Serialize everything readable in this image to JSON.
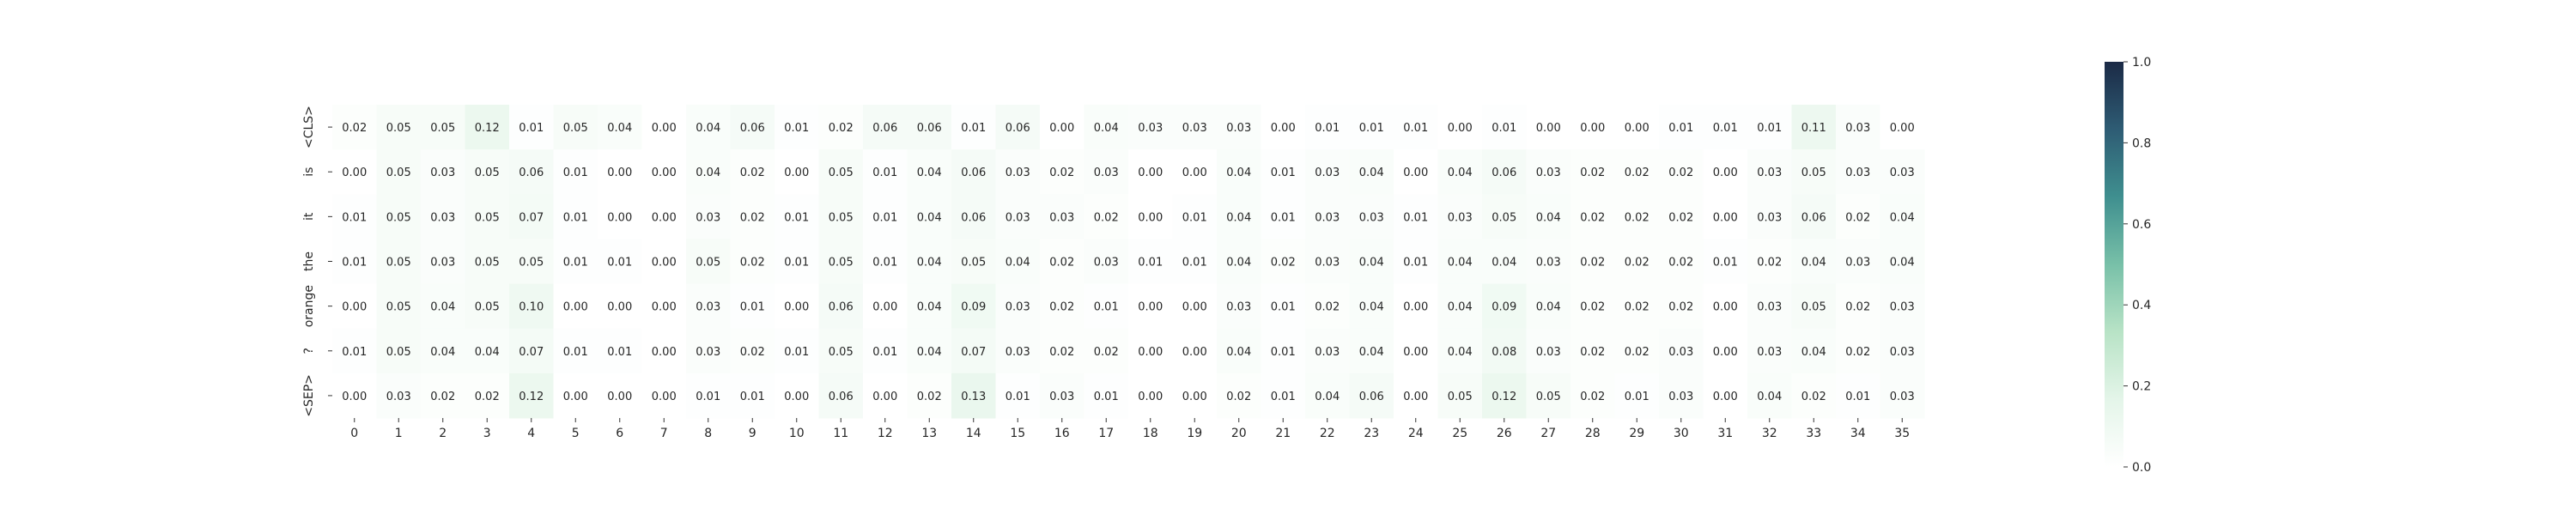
{
  "chart_data": {
    "type": "heatmap",
    "x_labels": [
      "0",
      "1",
      "2",
      "3",
      "4",
      "5",
      "6",
      "7",
      "8",
      "9",
      "10",
      "11",
      "12",
      "13",
      "14",
      "15",
      "16",
      "17",
      "18",
      "19",
      "20",
      "21",
      "22",
      "23",
      "24",
      "25",
      "26",
      "27",
      "28",
      "29",
      "30",
      "31",
      "32",
      "33",
      "34",
      "35"
    ],
    "y_labels": [
      "<CLS>",
      "is",
      "it",
      "the",
      "orange",
      "?",
      "<SEP>"
    ],
    "values": [
      [
        0.02,
        0.05,
        0.05,
        0.12,
        0.01,
        0.05,
        0.04,
        0.0,
        0.04,
        0.06,
        0.01,
        0.02,
        0.06,
        0.06,
        0.01,
        0.06,
        0.0,
        0.04,
        0.03,
        0.03,
        0.03,
        0.0,
        0.01,
        0.01,
        0.01,
        0.0,
        0.01,
        0.0,
        0.0,
        0.0,
        0.01,
        0.01,
        0.01,
        0.11,
        0.03,
        0.0
      ],
      [
        0.0,
        0.05,
        0.03,
        0.05,
        0.06,
        0.01,
        0.0,
        0.0,
        0.04,
        0.02,
        0.0,
        0.05,
        0.01,
        0.04,
        0.06,
        0.03,
        0.02,
        0.03,
        0.0,
        0.0,
        0.04,
        0.01,
        0.03,
        0.04,
        0.0,
        0.04,
        0.06,
        0.03,
        0.02,
        0.02,
        0.02,
        0.0,
        0.03,
        0.05,
        0.03,
        0.03
      ],
      [
        0.01,
        0.05,
        0.03,
        0.05,
        0.07,
        0.01,
        0.0,
        0.0,
        0.03,
        0.02,
        0.01,
        0.05,
        0.01,
        0.04,
        0.06,
        0.03,
        0.03,
        0.02,
        0.0,
        0.01,
        0.04,
        0.01,
        0.03,
        0.03,
        0.01,
        0.03,
        0.05,
        0.04,
        0.02,
        0.02,
        0.02,
        0.0,
        0.03,
        0.06,
        0.02,
        0.04
      ],
      [
        0.01,
        0.05,
        0.03,
        0.05,
        0.05,
        0.01,
        0.01,
        0.0,
        0.05,
        0.02,
        0.01,
        0.05,
        0.01,
        0.04,
        0.05,
        0.04,
        0.02,
        0.03,
        0.01,
        0.01,
        0.04,
        0.02,
        0.03,
        0.04,
        0.01,
        0.04,
        0.04,
        0.03,
        0.02,
        0.02,
        0.02,
        0.01,
        0.02,
        0.04,
        0.03,
        0.04
      ],
      [
        0.0,
        0.05,
        0.04,
        0.05,
        0.1,
        0.0,
        0.0,
        0.0,
        0.03,
        0.01,
        0.0,
        0.06,
        0.0,
        0.04,
        0.09,
        0.03,
        0.02,
        0.01,
        0.0,
        0.0,
        0.03,
        0.01,
        0.02,
        0.04,
        0.0,
        0.04,
        0.09,
        0.04,
        0.02,
        0.02,
        0.02,
        0.0,
        0.03,
        0.05,
        0.02,
        0.03
      ],
      [
        0.01,
        0.05,
        0.04,
        0.04,
        0.07,
        0.01,
        0.01,
        0.0,
        0.03,
        0.02,
        0.01,
        0.05,
        0.01,
        0.04,
        0.07,
        0.03,
        0.02,
        0.02,
        0.0,
        0.0,
        0.04,
        0.01,
        0.03,
        0.04,
        0.0,
        0.04,
        0.08,
        0.03,
        0.02,
        0.02,
        0.03,
        0.0,
        0.03,
        0.04,
        0.02,
        0.03
      ],
      [
        0.0,
        0.03,
        0.02,
        0.02,
        0.12,
        0.0,
        0.0,
        0.0,
        0.01,
        0.01,
        0.0,
        0.06,
        0.0,
        0.02,
        0.13,
        0.01,
        0.03,
        0.01,
        0.0,
        0.0,
        0.02,
        0.01,
        0.04,
        0.06,
        0.0,
        0.05,
        0.12,
        0.05,
        0.02,
        0.01,
        0.03,
        0.0,
        0.04,
        0.02,
        0.01,
        0.03
      ]
    ],
    "value_format": "0.00",
    "colorbar": {
      "vmin": 0.0,
      "vmax": 1.0,
      "ticks": [
        "0.0",
        "0.2",
        "0.4",
        "0.6",
        "0.8",
        "1.0"
      ]
    },
    "colormap": [
      "#ffffff",
      "#e4f5e9",
      "#b8e3c6",
      "#78c0a8",
      "#3f8f8f",
      "#2e5c74",
      "#1b2a46"
    ],
    "grid": false,
    "title": "",
    "xlabel": "",
    "ylabel": ""
  }
}
